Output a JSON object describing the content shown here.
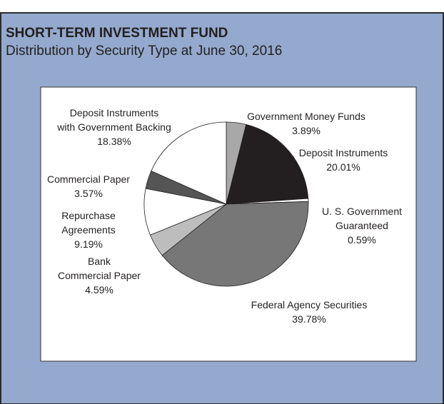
{
  "chart_data": {
    "type": "pie",
    "title": "SHORT-TERM INVESTMENT FUND",
    "subtitle": "Distribution by Security Type at June 30, 2016",
    "categories": [
      "Government Money Funds",
      "Deposit Instruments",
      "U. S. Government\nGuaranteed",
      "Federal Agency Securities",
      "Bank\nCommercial Paper",
      "Repurchase\nAgreements",
      "Commercial Paper",
      "Deposit Instruments\nwith Government Backing"
    ],
    "values": [
      3.89,
      20.01,
      0.59,
      39.78,
      4.59,
      9.19,
      3.57,
      18.38
    ],
    "value_labels": [
      "3.89%",
      "20.01%",
      "0.59%",
      "39.78%",
      "4.59%",
      "9.19%",
      "3.57%",
      "18.38%"
    ],
    "colors": [
      "#a8a8a8",
      "#231f20",
      "#ffffff",
      "#777777",
      "#bdbdbd",
      "#ffffff",
      "#555555",
      "#ffffff"
    ]
  }
}
